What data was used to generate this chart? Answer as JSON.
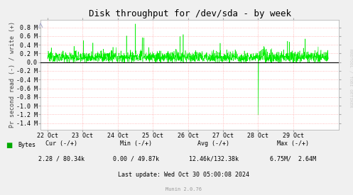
{
  "title": "Disk throughput for /dev/sda - by week",
  "ylabel": "Pr second read (-) / write (+)",
  "background_color": "#F0F0F0",
  "plot_bg_color": "#FFFFFF",
  "grid_color": "#FFAAAA",
  "line_color": "#00EE00",
  "zero_line_color": "#000000",
  "yticks": [
    -1.4,
    -1.2,
    -1.0,
    -0.8,
    -0.6,
    -0.4,
    -0.2,
    0.0,
    0.2,
    0.4,
    0.6,
    0.8
  ],
  "ytick_labels": [
    "-1.4 M",
    "-1.2 M",
    "-1.0 M",
    "-0.8 M",
    "-0.6 M",
    "-0.4 M",
    "-0.2 M",
    "0.0",
    "0.2 M",
    "0.4 M",
    "0.6 M",
    "0.8 M"
  ],
  "ylim": [
    -1.55,
    0.98
  ],
  "xticklabels": [
    "22 Oct",
    "23 Oct",
    "24 Oct",
    "25 Oct",
    "26 Oct",
    "27 Oct",
    "28 Oct",
    "29 Oct"
  ],
  "legend_label": "Bytes",
  "legend_color": "#00AA00",
  "footer_text_color": "#000000",
  "footer_gray_color": "#999999",
  "cur_line": "     Cur (-/+)             Min (-/+)         Avg (-/+)          Max (-/+)",
  "vals_line": "  2.28 / 80.34k       0.00 / 49.87k   12.46k/132.38k    6.75M/  2.64M",
  "last_update": "Last update: Wed Oct 30 05:00:08 2024",
  "munin_version": "Munin 2.0.76",
  "rrdtool_text": "RRDTOOL / TOBI OETIKER",
  "title_fontsize": 9,
  "axis_label_fontsize": 6,
  "tick_fontsize": 6,
  "footer_fontsize": 6,
  "munin_fontsize": 5
}
